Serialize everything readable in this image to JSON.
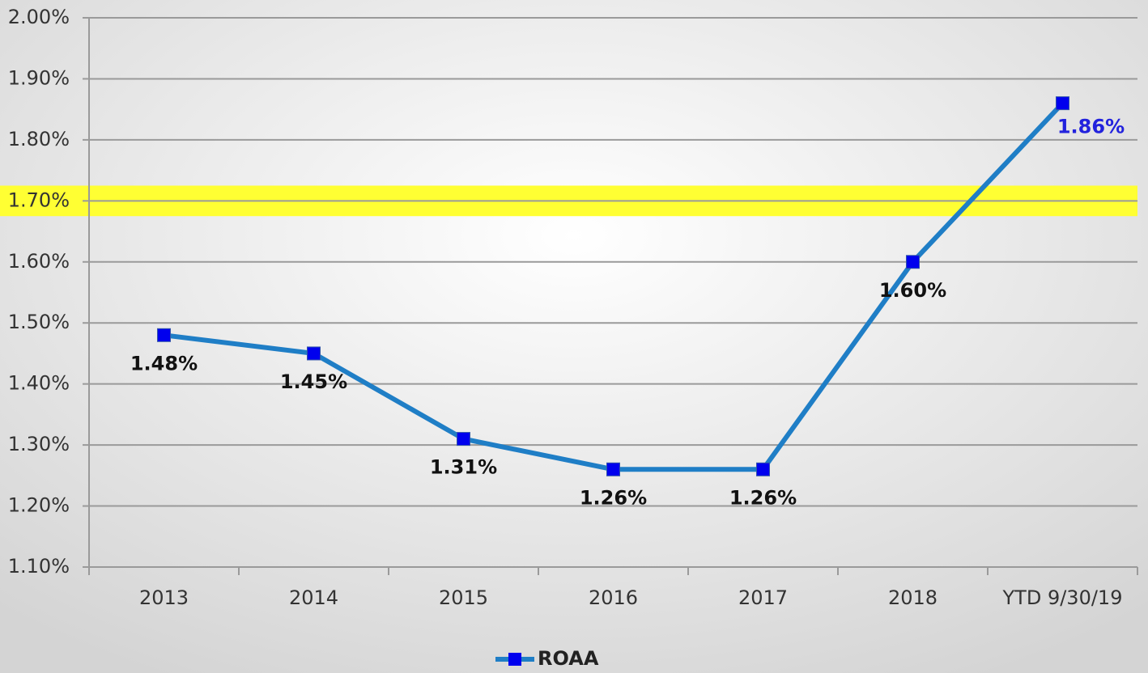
{
  "chart_data": {
    "type": "line",
    "categories": [
      "2013",
      "2014",
      "2015",
      "2016",
      "2017",
      "2018",
      "YTD 9/30/19"
    ],
    "series": [
      {
        "name": "ROAA",
        "line_color": "#1f7ec6",
        "marker_color": "#0000ee",
        "values": [
          1.48,
          1.45,
          1.31,
          1.26,
          1.26,
          1.6,
          1.86
        ],
        "value_labels": [
          "1.48%",
          "1.45%",
          "1.31%",
          "1.26%",
          "1.26%",
          "1.60%",
          "1.86%"
        ],
        "label_colors": [
          "#111111",
          "#111111",
          "#111111",
          "#111111",
          "#111111",
          "#111111",
          "#2222dd"
        ]
      }
    ],
    "ylim": [
      1.1,
      2.0
    ],
    "yticks": [
      {
        "value": 1.1,
        "label": "1.10%"
      },
      {
        "value": 1.2,
        "label": "1.20%"
      },
      {
        "value": 1.3,
        "label": "1.30%"
      },
      {
        "value": 1.4,
        "label": "1.40%"
      },
      {
        "value": 1.5,
        "label": "1.50%"
      },
      {
        "value": 1.6,
        "label": "1.60%"
      },
      {
        "value": 1.7,
        "label": "1.70%"
      },
      {
        "value": 1.8,
        "label": "1.80%"
      },
      {
        "value": 1.9,
        "label": "1.90%"
      },
      {
        "value": 2.0,
        "label": "2.00%"
      }
    ],
    "highlight_band": [
      1.675,
      1.725
    ],
    "highlight_color": "#ffff33",
    "grid": true,
    "legend": "bottom"
  }
}
